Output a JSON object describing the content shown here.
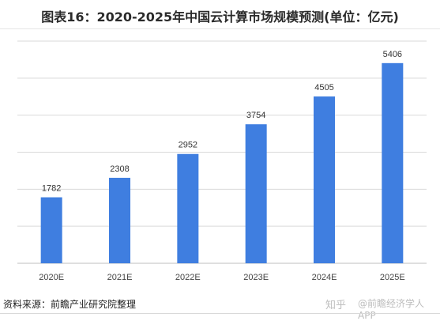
{
  "title": "图表16：2020-2025年中国云计算市场规模预测(单位：亿元)",
  "source": "资料来源：前瞻产业研究院整理",
  "watermark": {
    "site": "知乎",
    "account": "@前瞻经济学人APP"
  },
  "colors": {
    "bar": "#3f7ee0",
    "grid": "#d9d9d9",
    "axis": "#bfbfbf",
    "label": "#333333"
  },
  "chart_data": {
    "type": "bar",
    "categories": [
      "2020E",
      "2021E",
      "2022E",
      "2023E",
      "2024E",
      "2025E"
    ],
    "values": [
      1782,
      2308,
      2952,
      3754,
      4505,
      5406
    ],
    "title": "图表16：2020-2025年中国云计算市场规模预测(单位：亿元)",
    "xlabel": "",
    "ylabel": "",
    "ylim": [
      0,
      6000
    ],
    "grid": true,
    "data_labels": true,
    "legend": "none"
  }
}
